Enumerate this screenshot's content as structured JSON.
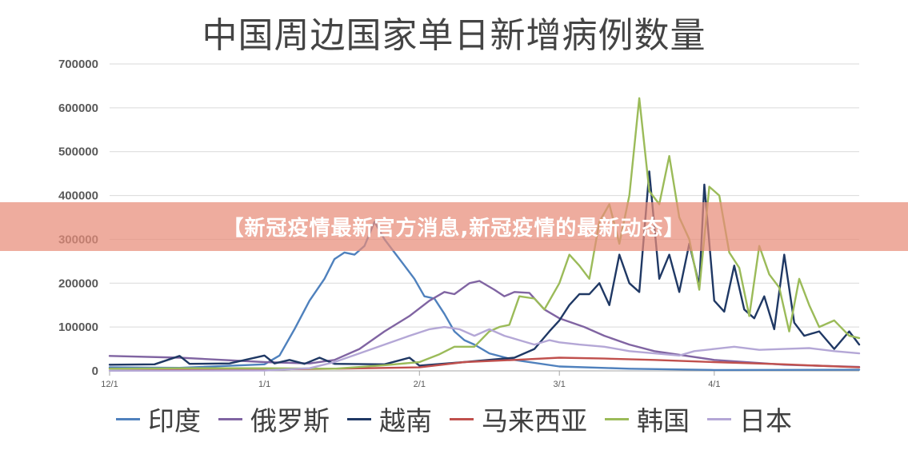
{
  "chart_data": {
    "type": "line",
    "title": "中国周边国家单日新增病例数量",
    "xlabel": "",
    "ylabel": "",
    "ylim": [
      0,
      700000
    ],
    "yticks": [
      0,
      100000,
      200000,
      300000,
      400000,
      500000,
      600000,
      700000
    ],
    "xlim": [
      "2021-12-01",
      "2022-04-30"
    ],
    "xticks": [
      {
        "date": "2021-12-01",
        "label": "12/1"
      },
      {
        "date": "2022-01-01",
        "label": "1/1"
      },
      {
        "date": "2022-02-01",
        "label": "2/1"
      },
      {
        "date": "2022-03-01",
        "label": "3/1"
      },
      {
        "date": "2022-04-01",
        "label": "4/1"
      }
    ],
    "grid": true,
    "legend_position": "bottom",
    "series": [
      {
        "name": "印度",
        "color": "#4F81BD",
        "points": [
          [
            "2021-12-01",
            8000
          ],
          [
            "2021-12-15",
            7000
          ],
          [
            "2022-01-01",
            15000
          ],
          [
            "2022-01-04",
            35000
          ],
          [
            "2022-01-07",
            95000
          ],
          [
            "2022-01-10",
            160000
          ],
          [
            "2022-01-13",
            210000
          ],
          [
            "2022-01-15",
            255000
          ],
          [
            "2022-01-17",
            270000
          ],
          [
            "2022-01-19",
            265000
          ],
          [
            "2022-01-21",
            285000
          ],
          [
            "2022-01-23",
            340000
          ],
          [
            "2022-01-25",
            300000
          ],
          [
            "2022-01-27",
            270000
          ],
          [
            "2022-01-29",
            240000
          ],
          [
            "2022-01-31",
            210000
          ],
          [
            "2022-02-02",
            170000
          ],
          [
            "2022-02-04",
            165000
          ],
          [
            "2022-02-06",
            130000
          ],
          [
            "2022-02-08",
            90000
          ],
          [
            "2022-02-10",
            70000
          ],
          [
            "2022-02-12",
            60000
          ],
          [
            "2022-02-15",
            40000
          ],
          [
            "2022-02-20",
            25000
          ],
          [
            "2022-03-01",
            10000
          ],
          [
            "2022-03-15",
            5000
          ],
          [
            "2022-04-01",
            2000
          ],
          [
            "2022-04-30",
            2500
          ]
        ]
      },
      {
        "name": "俄罗斯",
        "color": "#8064A2",
        "points": [
          [
            "2021-12-01",
            34000
          ],
          [
            "2021-12-15",
            30000
          ],
          [
            "2022-01-01",
            20000
          ],
          [
            "2022-01-10",
            17000
          ],
          [
            "2022-01-15",
            25000
          ],
          [
            "2022-01-20",
            50000
          ],
          [
            "2022-01-25",
            90000
          ],
          [
            "2022-01-30",
            125000
          ],
          [
            "2022-02-03",
            160000
          ],
          [
            "2022-02-06",
            180000
          ],
          [
            "2022-02-08",
            175000
          ],
          [
            "2022-02-11",
            200000
          ],
          [
            "2022-02-13",
            205000
          ],
          [
            "2022-02-16",
            185000
          ],
          [
            "2022-02-18",
            170000
          ],
          [
            "2022-02-20",
            180000
          ],
          [
            "2022-02-23",
            178000
          ],
          [
            "2022-02-26",
            140000
          ],
          [
            "2022-03-01",
            120000
          ],
          [
            "2022-03-06",
            100000
          ],
          [
            "2022-03-10",
            80000
          ],
          [
            "2022-03-15",
            60000
          ],
          [
            "2022-03-20",
            45000
          ],
          [
            "2022-04-01",
            25000
          ],
          [
            "2022-04-15",
            14000
          ],
          [
            "2022-04-30",
            9000
          ]
        ]
      },
      {
        "name": "越南",
        "color": "#1F3864",
        "points": [
          [
            "2021-12-01",
            14000
          ],
          [
            "2021-12-10",
            15000
          ],
          [
            "2021-12-15",
            34000
          ],
          [
            "2021-12-17",
            16000
          ],
          [
            "2021-12-25",
            17000
          ],
          [
            "2022-01-01",
            35000
          ],
          [
            "2022-01-03",
            17000
          ],
          [
            "2022-01-06",
            25000
          ],
          [
            "2022-01-09",
            16000
          ],
          [
            "2022-01-12",
            30000
          ],
          [
            "2022-01-15",
            16000
          ],
          [
            "2022-01-25",
            15000
          ],
          [
            "2022-01-30",
            30000
          ],
          [
            "2022-02-01",
            12000
          ],
          [
            "2022-02-10",
            20000
          ],
          [
            "2022-02-20",
            30000
          ],
          [
            "2022-02-24",
            50000
          ],
          [
            "2022-02-27",
            90000
          ],
          [
            "2022-03-01",
            115000
          ],
          [
            "2022-03-03",
            150000
          ],
          [
            "2022-03-05",
            175000
          ],
          [
            "2022-03-07",
            175000
          ],
          [
            "2022-03-09",
            200000
          ],
          [
            "2022-03-11",
            150000
          ],
          [
            "2022-03-13",
            265000
          ],
          [
            "2022-03-15",
            200000
          ],
          [
            "2022-03-17",
            180000
          ],
          [
            "2022-03-19",
            455000
          ],
          [
            "2022-03-21",
            210000
          ],
          [
            "2022-03-23",
            265000
          ],
          [
            "2022-03-25",
            180000
          ],
          [
            "2022-03-27",
            290000
          ],
          [
            "2022-03-29",
            195000
          ],
          [
            "2022-03-30",
            425000
          ],
          [
            "2022-04-01",
            160000
          ],
          [
            "2022-04-03",
            135000
          ],
          [
            "2022-04-05",
            240000
          ],
          [
            "2022-04-07",
            140000
          ],
          [
            "2022-04-09",
            120000
          ],
          [
            "2022-04-11",
            170000
          ],
          [
            "2022-04-13",
            95000
          ],
          [
            "2022-04-15",
            265000
          ],
          [
            "2022-04-17",
            110000
          ],
          [
            "2022-04-19",
            80000
          ],
          [
            "2022-04-22",
            90000
          ],
          [
            "2022-04-25",
            50000
          ],
          [
            "2022-04-28",
            90000
          ],
          [
            "2022-04-30",
            60000
          ]
        ]
      },
      {
        "name": "马来西亚",
        "color": "#C0504D",
        "points": [
          [
            "2021-12-01",
            5000
          ],
          [
            "2021-12-15",
            4000
          ],
          [
            "2022-01-01",
            3500
          ],
          [
            "2022-01-15",
            5000
          ],
          [
            "2022-02-01",
            8000
          ],
          [
            "2022-02-10",
            20000
          ],
          [
            "2022-02-20",
            25000
          ],
          [
            "2022-03-01",
            30000
          ],
          [
            "2022-03-10",
            28000
          ],
          [
            "2022-03-20",
            25000
          ],
          [
            "2022-04-01",
            20000
          ],
          [
            "2022-04-15",
            15000
          ],
          [
            "2022-04-30",
            8000
          ]
        ]
      },
      {
        "name": "韩国",
        "color": "#9BBB59",
        "points": [
          [
            "2021-12-01",
            5000
          ],
          [
            "2021-12-15",
            6000
          ],
          [
            "2022-01-01",
            6000
          ],
          [
            "2022-01-15",
            5000
          ],
          [
            "2022-01-25",
            13000
          ],
          [
            "2022-02-01",
            20000
          ],
          [
            "2022-02-05",
            38000
          ],
          [
            "2022-02-08",
            55000
          ],
          [
            "2022-02-12",
            55000
          ],
          [
            "2022-02-15",
            90000
          ],
          [
            "2022-02-17",
            100000
          ],
          [
            "2022-02-19",
            105000
          ],
          [
            "2022-02-21",
            170000
          ],
          [
            "2022-02-24",
            165000
          ],
          [
            "2022-02-26",
            140000
          ],
          [
            "2022-03-01",
            200000
          ],
          [
            "2022-03-03",
            265000
          ],
          [
            "2022-03-05",
            240000
          ],
          [
            "2022-03-07",
            210000
          ],
          [
            "2022-03-09",
            340000
          ],
          [
            "2022-03-11",
            380000
          ],
          [
            "2022-03-13",
            290000
          ],
          [
            "2022-03-15",
            400000
          ],
          [
            "2022-03-17",
            622000
          ],
          [
            "2022-03-19",
            410000
          ],
          [
            "2022-03-21",
            380000
          ],
          [
            "2022-03-23",
            490000
          ],
          [
            "2022-03-25",
            350000
          ],
          [
            "2022-03-27",
            300000
          ],
          [
            "2022-03-29",
            185000
          ],
          [
            "2022-03-31",
            420000
          ],
          [
            "2022-04-02",
            400000
          ],
          [
            "2022-04-04",
            270000
          ],
          [
            "2022-04-06",
            235000
          ],
          [
            "2022-04-08",
            125000
          ],
          [
            "2022-04-10",
            285000
          ],
          [
            "2022-04-12",
            220000
          ],
          [
            "2022-04-14",
            190000
          ],
          [
            "2022-04-16",
            90000
          ],
          [
            "2022-04-18",
            210000
          ],
          [
            "2022-04-20",
            150000
          ],
          [
            "2022-04-22",
            100000
          ],
          [
            "2022-04-25",
            115000
          ],
          [
            "2022-04-28",
            80000
          ],
          [
            "2022-04-30",
            75000
          ]
        ]
      },
      {
        "name": "日本",
        "color": "#B4A7D6",
        "points": [
          [
            "2021-12-01",
            300
          ],
          [
            "2021-12-20",
            500
          ],
          [
            "2022-01-01",
            1000
          ],
          [
            "2022-01-10",
            6000
          ],
          [
            "2022-01-15",
            20000
          ],
          [
            "2022-01-20",
            40000
          ],
          [
            "2022-01-25",
            60000
          ],
          [
            "2022-01-30",
            80000
          ],
          [
            "2022-02-03",
            95000
          ],
          [
            "2022-02-06",
            100000
          ],
          [
            "2022-02-09",
            95000
          ],
          [
            "2022-02-12",
            80000
          ],
          [
            "2022-02-15",
            95000
          ],
          [
            "2022-02-18",
            80000
          ],
          [
            "2022-02-21",
            70000
          ],
          [
            "2022-02-24",
            60000
          ],
          [
            "2022-02-27",
            70000
          ],
          [
            "2022-03-01",
            65000
          ],
          [
            "2022-03-05",
            60000
          ],
          [
            "2022-03-10",
            55000
          ],
          [
            "2022-03-15",
            45000
          ],
          [
            "2022-03-20",
            40000
          ],
          [
            "2022-03-25",
            35000
          ],
          [
            "2022-03-28",
            45000
          ],
          [
            "2022-04-01",
            50000
          ],
          [
            "2022-04-05",
            55000
          ],
          [
            "2022-04-10",
            48000
          ],
          [
            "2022-04-15",
            50000
          ],
          [
            "2022-04-20",
            52000
          ],
          [
            "2022-04-25",
            45000
          ],
          [
            "2022-04-30",
            40000
          ]
        ]
      }
    ]
  },
  "banner": {
    "text": "【新冠疫情最新官方消息,新冠疫情的最新动态】"
  }
}
